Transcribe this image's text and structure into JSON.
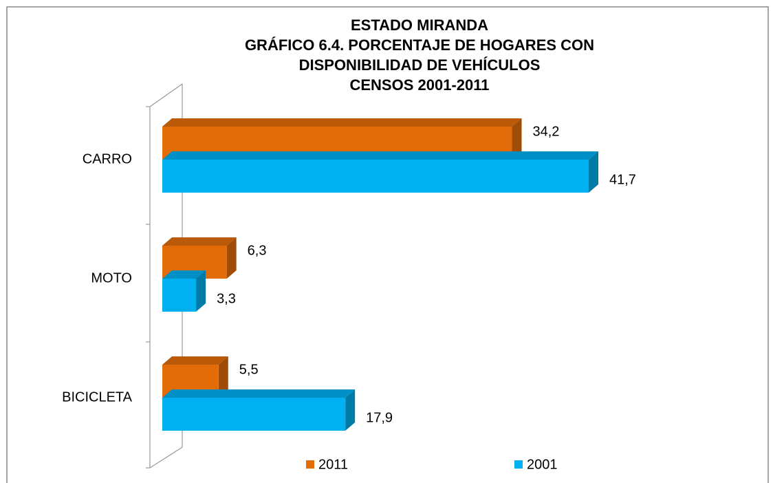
{
  "chart_data": {
    "type": "bar",
    "orientation": "horizontal",
    "title": [
      "ESTADO MIRANDA",
      "GRÁFICO 6.4. PORCENTAJE DE HOGARES CON",
      "DISPONIBILIDAD  DE VEHÍCULOS",
      "CENSOS 2001-2011"
    ],
    "categories": [
      "CARRO",
      "MOTO",
      "BICICLETA"
    ],
    "series": [
      {
        "name": "2011",
        "color": "#e36c09",
        "values": [
          34.2,
          6.3,
          5.5
        ],
        "value_labels": [
          "34,2",
          "6,3",
          "5,5"
        ]
      },
      {
        "name": "2001",
        "color": "#00b0f0",
        "values": [
          41.7,
          3.3,
          17.9
        ],
        "value_labels": [
          "41,7",
          "3,3",
          "17,9"
        ]
      }
    ],
    "legend": "bottom"
  }
}
